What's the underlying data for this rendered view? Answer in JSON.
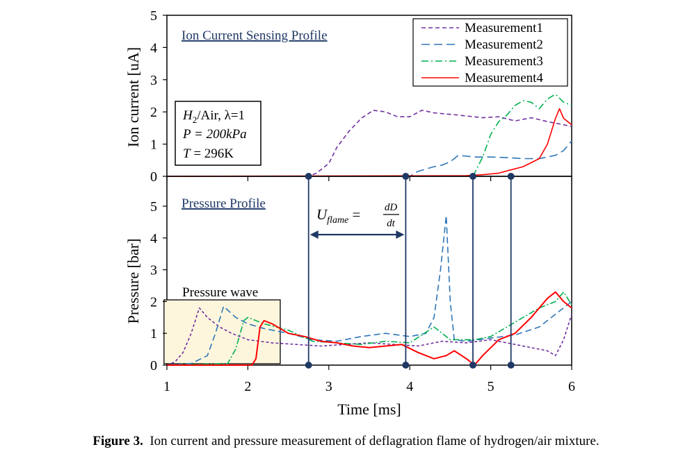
{
  "chart_data": {
    "type": "line",
    "xlabel": "Time [ms]",
    "xlim": [
      1,
      6
    ],
    "xticks": [
      "1",
      "2",
      "3",
      "4",
      "5",
      "6"
    ],
    "panels": [
      {
        "title": "Ion Current Sensing Profile",
        "ylabel": "Ion current [uA]",
        "ylim": [
          0,
          5
        ],
        "yticks": [
          "0",
          "1",
          "2",
          "3",
          "4",
          "5"
        ],
        "series": [
          {
            "name": "Measurement1",
            "color": "#7030a0",
            "dash": "6,4",
            "x": [
              1.0,
              2.75,
              2.85,
              3.0,
              3.1,
              3.25,
              3.4,
              3.55,
              3.7,
              3.85,
              4.0,
              4.15,
              4.3,
              4.6,
              4.9,
              5.1,
              5.3,
              5.5,
              5.7,
              6.0
            ],
            "y": [
              0.0,
              0.0,
              0.1,
              0.4,
              0.9,
              1.4,
              1.8,
              2.05,
              2.0,
              1.85,
              1.85,
              2.05,
              1.97,
              1.9,
              1.82,
              1.85,
              1.72,
              1.82,
              1.7,
              1.55
            ]
          },
          {
            "name": "Measurement2",
            "color": "#2e75b6",
            "dash": "12,6",
            "x": [
              1.0,
              4.0,
              4.1,
              4.3,
              4.4,
              4.5,
              4.6,
              4.8,
              5.0,
              5.2,
              5.4,
              5.6,
              5.8,
              5.9,
              6.0
            ],
            "y": [
              0.0,
              0.0,
              0.15,
              0.3,
              0.35,
              0.45,
              0.65,
              0.6,
              0.6,
              0.58,
              0.55,
              0.55,
              0.65,
              0.8,
              1.1
            ]
          },
          {
            "name": "Measurement3",
            "color": "#00b050",
            "dash": "10,4,2,4",
            "x": [
              1.0,
              4.78,
              4.9,
              5.0,
              5.1,
              5.2,
              5.3,
              5.4,
              5.5,
              5.6,
              5.7,
              5.8,
              5.9,
              6.0
            ],
            "y": [
              0.0,
              0.0,
              0.6,
              1.3,
              1.7,
              1.9,
              2.2,
              2.35,
              2.3,
              2.1,
              2.4,
              2.55,
              2.3,
              2.2
            ]
          },
          {
            "name": "Measurement4",
            "color": "#ff0000",
            "dash": "",
            "x": [
              1.0,
              4.7,
              4.9,
              5.1,
              5.25,
              5.4,
              5.6,
              5.7,
              5.8,
              5.85,
              5.9,
              6.0
            ],
            "y": [
              0.0,
              0.02,
              0.05,
              0.1,
              0.2,
              0.3,
              0.55,
              1.0,
              1.8,
              2.1,
              1.8,
              1.6
            ]
          }
        ]
      },
      {
        "title": "Pressure Profile",
        "ylabel": "Pressure [bar]",
        "ylim": [
          0,
          5
        ],
        "yticks": [
          "0",
          "1",
          "2",
          "3",
          "4",
          "5"
        ],
        "series": [
          {
            "name": "Measurement1",
            "color": "#7030a0",
            "dash": "4,3",
            "x": [
              1.0,
              1.1,
              1.2,
              1.3,
              1.4,
              1.5,
              1.65,
              1.8,
              2.0,
              2.3,
              2.6,
              2.9,
              3.2,
              3.5,
              3.8,
              4.1,
              4.4,
              4.7,
              5.0,
              5.3,
              5.5,
              5.7,
              5.8,
              5.9,
              6.0
            ],
            "y": [
              0.0,
              0.1,
              0.4,
              1.0,
              1.8,
              1.5,
              1.2,
              1.0,
              0.8,
              0.7,
              0.65,
              0.6,
              0.65,
              0.7,
              0.65,
              0.6,
              0.75,
              0.7,
              0.8,
              0.65,
              0.55,
              0.45,
              0.3,
              0.8,
              1.6
            ]
          },
          {
            "name": "Measurement2",
            "color": "#2e75b6",
            "dash": "9,5",
            "x": [
              1.0,
              1.3,
              1.5,
              1.6,
              1.7,
              1.85,
              2.0,
              2.2,
              2.5,
              2.8,
              3.1,
              3.4,
              3.7,
              4.0,
              4.2,
              4.3,
              4.38,
              4.45,
              4.5,
              4.55,
              4.7,
              5.0,
              5.3,
              5.6,
              5.8,
              6.0
            ],
            "y": [
              0.0,
              0.05,
              0.3,
              1.0,
              1.85,
              1.5,
              1.3,
              1.15,
              1.0,
              0.8,
              0.75,
              0.9,
              1.0,
              0.9,
              1.0,
              1.5,
              3.0,
              4.7,
              2.0,
              0.8,
              0.75,
              0.85,
              0.95,
              1.2,
              1.6,
              2.0
            ]
          },
          {
            "name": "Measurement3",
            "color": "#00b050",
            "dash": "9,3,2,3",
            "x": [
              1.0,
              1.75,
              1.85,
              1.95,
              2.0,
              2.2,
              2.5,
              2.8,
              3.1,
              3.4,
              3.7,
              4.0,
              4.3,
              4.5,
              4.8,
              5.0,
              5.2,
              5.4,
              5.6,
              5.8,
              5.9,
              6.0
            ],
            "y": [
              0.0,
              0.05,
              0.5,
              1.4,
              1.5,
              1.3,
              1.1,
              0.75,
              0.7,
              0.65,
              0.75,
              0.7,
              1.2,
              0.8,
              0.8,
              0.9,
              1.2,
              1.5,
              1.8,
              2.0,
              2.3,
              1.9
            ]
          },
          {
            "name": "Measurement4",
            "color": "#ff0000",
            "dash": "",
            "x": [
              1.0,
              2.05,
              2.1,
              2.15,
              2.2,
              2.3,
              2.5,
              2.7,
              2.9,
              3.1,
              3.3,
              3.5,
              3.7,
              3.9,
              4.1,
              4.3,
              4.45,
              4.55,
              4.7,
              4.8,
              4.9,
              5.1,
              5.3,
              5.5,
              5.7,
              5.8,
              5.9,
              6.0
            ],
            "y": [
              0.0,
              0.0,
              0.2,
              1.2,
              1.4,
              1.3,
              1.0,
              0.9,
              0.75,
              0.7,
              0.6,
              0.55,
              0.6,
              0.65,
              0.4,
              0.2,
              0.3,
              0.45,
              0.2,
              0.0,
              0.3,
              0.8,
              1.0,
              1.5,
              2.1,
              2.3,
              2.0,
              1.8
            ]
          }
        ]
      }
    ],
    "markers_x": [
      2.75,
      3.95,
      4.78,
      5.25
    ],
    "annotations": {
      "condition_lines": [
        "H2/Air, λ=1",
        "P = 200kPa",
        "T = 296K"
      ],
      "pressure_wave_label": "Pressure wave",
      "pressure_wave_range": [
        1.05,
        2.4
      ],
      "uflame_formula": "U_flame = dD/dt"
    }
  },
  "caption": {
    "label": "Figure 3.",
    "text": "Ion current and pressure measurement of deflagration flame of hydrogen/air mixture."
  }
}
